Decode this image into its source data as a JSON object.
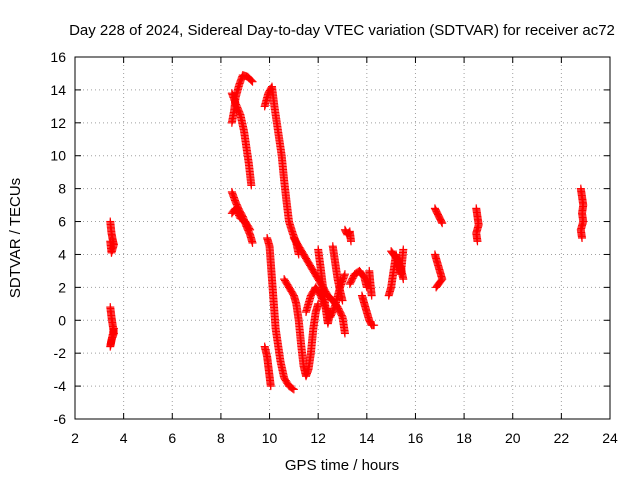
{
  "chart_data": {
    "type": "scatter",
    "title": "Day 228 of 2024, Sidereal Day-to-day VTEC variation (SDTVAR) for receiver ac72",
    "xlabel": "GPS time / hours",
    "ylabel": "SDTVAR / TECUs",
    "xlim": [
      2,
      24
    ],
    "ylim": [
      -6,
      16
    ],
    "xticks": [
      2,
      4,
      6,
      8,
      10,
      12,
      14,
      16,
      18,
      20,
      22,
      24
    ],
    "yticks": [
      -6,
      -4,
      -2,
      0,
      2,
      4,
      6,
      8,
      10,
      12,
      14,
      16
    ],
    "grid": true,
    "marker": "+",
    "color": "#ff0000",
    "series": [
      {
        "name": "SDTVAR",
        "segments": [
          [
            [
              3.45,
              6.0
            ],
            [
              3.5,
              5.3
            ],
            [
              3.55,
              4.9
            ],
            [
              3.6,
              4.6
            ],
            [
              3.5,
              4.1
            ],
            [
              3.45,
              4.8
            ]
          ],
          [
            [
              3.45,
              0.8
            ],
            [
              3.5,
              0.2
            ],
            [
              3.55,
              -0.3
            ],
            [
              3.6,
              -0.8
            ],
            [
              3.5,
              -1.2
            ],
            [
              3.45,
              -1.6
            ],
            [
              3.6,
              -0.5
            ]
          ],
          [
            [
              8.45,
              12.0
            ],
            [
              8.55,
              12.8
            ],
            [
              8.6,
              13.5
            ],
            [
              8.75,
              14.3
            ],
            [
              8.9,
              14.9
            ],
            [
              9.1,
              14.8
            ],
            [
              9.3,
              14.5
            ]
          ],
          [
            [
              8.45,
              13.8
            ],
            [
              8.6,
              13.2
            ],
            [
              8.8,
              12.5
            ],
            [
              8.95,
              11.5
            ],
            [
              9.05,
              10.5
            ],
            [
              9.15,
              9.5
            ],
            [
              9.25,
              8.2
            ]
          ],
          [
            [
              8.45,
              7.8
            ],
            [
              8.6,
              7.2
            ],
            [
              8.75,
              6.7
            ],
            [
              8.9,
              6.3
            ],
            [
              9.05,
              5.7
            ],
            [
              9.2,
              5.2
            ],
            [
              9.3,
              4.7
            ]
          ],
          [
            [
              8.45,
              6.5
            ],
            [
              8.6,
              6.8
            ],
            [
              8.8,
              6.2
            ],
            [
              9.0,
              6.0
            ],
            [
              9.2,
              5.5
            ]
          ],
          [
            [
              9.8,
              13.0
            ],
            [
              9.95,
              13.8
            ],
            [
              10.1,
              14.2
            ],
            [
              10.2,
              13.0
            ],
            [
              10.35,
              11.5
            ],
            [
              10.5,
              10.0
            ],
            [
              10.6,
              8.5
            ],
            [
              10.7,
              7.2
            ],
            [
              10.8,
              6.0
            ],
            [
              10.95,
              5.3
            ],
            [
              11.1,
              4.7
            ],
            [
              11.2,
              4.0
            ]
          ],
          [
            [
              9.9,
              5.0
            ],
            [
              10.0,
              4.5
            ],
            [
              10.05,
              3.5
            ],
            [
              10.1,
              2.5
            ],
            [
              10.15,
              1.5
            ],
            [
              10.2,
              0.5
            ],
            [
              10.25,
              -0.5
            ],
            [
              10.35,
              -1.5
            ],
            [
              10.45,
              -2.5
            ],
            [
              10.6,
              -3.5
            ],
            [
              10.8,
              -4.0
            ],
            [
              11.0,
              -4.2
            ]
          ],
          [
            [
              9.8,
              -1.6
            ],
            [
              9.9,
              -2.2
            ],
            [
              9.95,
              -2.8
            ],
            [
              10.0,
              -3.4
            ],
            [
              10.05,
              -4.0
            ]
          ],
          [
            [
              10.6,
              2.5
            ],
            [
              10.8,
              2.0
            ],
            [
              11.0,
              1.5
            ],
            [
              11.1,
              1.0
            ],
            [
              11.2,
              0.0
            ],
            [
              11.3,
              -1.5
            ],
            [
              11.4,
              -2.8
            ],
            [
              11.5,
              -3.4
            ],
            [
              11.6,
              -3.0
            ],
            [
              11.7,
              -2.0
            ],
            [
              11.8,
              -0.5
            ],
            [
              11.9,
              0.5
            ],
            [
              12.0,
              1.0
            ]
          ],
          [
            [
              11.0,
              5.0
            ],
            [
              11.2,
              4.5
            ],
            [
              11.4,
              4.0
            ],
            [
              11.6,
              3.5
            ],
            [
              11.8,
              3.0
            ],
            [
              12.0,
              2.5
            ],
            [
              12.2,
              2.0
            ],
            [
              12.4,
              1.5
            ],
            [
              12.6,
              1.2
            ],
            [
              12.8,
              0.8
            ],
            [
              13.0,
              0.2
            ],
            [
              13.1,
              -0.8
            ]
          ],
          [
            [
              12.0,
              4.3
            ],
            [
              12.1,
              3.2
            ],
            [
              12.2,
              2.0
            ],
            [
              12.3,
              0.8
            ],
            [
              12.4,
              -0.2
            ],
            [
              12.5,
              0.5
            ]
          ],
          [
            [
              12.6,
              4.5
            ],
            [
              12.7,
              3.5
            ],
            [
              12.8,
              2.5
            ],
            [
              12.9,
              1.8
            ],
            [
              13.0,
              1.2
            ]
          ],
          [
            [
              11.5,
              0.5
            ],
            [
              11.7,
              1.5
            ],
            [
              11.9,
              2.0
            ],
            [
              12.1,
              1.5
            ],
            [
              12.3,
              0.8
            ],
            [
              12.5,
              0.2
            ],
            [
              12.7,
              0.9
            ],
            [
              12.9,
              2.0
            ],
            [
              13.1,
              2.8
            ]
          ],
          [
            [
              13.1,
              5.5
            ],
            [
              13.2,
              5.2
            ],
            [
              13.3,
              5.4
            ],
            [
              13.35,
              4.8
            ]
          ],
          [
            [
              13.3,
              2.2
            ],
            [
              13.5,
              2.8
            ],
            [
              13.7,
              3.0
            ],
            [
              13.9,
              2.6
            ],
            [
              14.0,
              2.0
            ]
          ],
          [
            [
              13.8,
              1.5
            ],
            [
              13.9,
              1.0
            ],
            [
              14.0,
              0.5
            ],
            [
              14.1,
              0.0
            ],
            [
              14.2,
              -0.3
            ],
            [
              14.3,
              -0.3
            ]
          ],
          [
            [
              14.1,
              3.0
            ],
            [
              14.15,
              2.2
            ],
            [
              14.2,
              1.5
            ]
          ],
          [
            [
              14.9,
              1.5
            ],
            [
              15.0,
              2.0
            ],
            [
              15.1,
              3.0
            ],
            [
              15.2,
              4.0
            ],
            [
              15.3,
              3.5
            ],
            [
              15.4,
              2.8
            ],
            [
              15.5,
              4.3
            ]
          ],
          [
            [
              15.0,
              4.2
            ],
            [
              15.2,
              3.8
            ],
            [
              15.4,
              3.2
            ],
            [
              15.5,
              2.5
            ]
          ],
          [
            [
              16.8,
              6.8
            ],
            [
              16.9,
              6.5
            ],
            [
              17.0,
              6.2
            ],
            [
              17.1,
              5.9
            ]
          ],
          [
            [
              16.8,
              4.0
            ],
            [
              16.9,
              3.5
            ],
            [
              17.0,
              3.0
            ],
            [
              17.1,
              2.5
            ],
            [
              16.85,
              2.0
            ]
          ],
          [
            [
              18.5,
              6.8
            ],
            [
              18.55,
              6.3
            ],
            [
              18.6,
              5.8
            ],
            [
              18.5,
              5.3
            ],
            [
              18.55,
              4.8
            ]
          ],
          [
            [
              22.8,
              8.0
            ],
            [
              22.85,
              7.5
            ],
            [
              22.9,
              7.0
            ],
            [
              22.85,
              6.5
            ],
            [
              22.9,
              6.0
            ],
            [
              22.8,
              5.5
            ],
            [
              22.85,
              5.0
            ]
          ]
        ]
      }
    ]
  }
}
